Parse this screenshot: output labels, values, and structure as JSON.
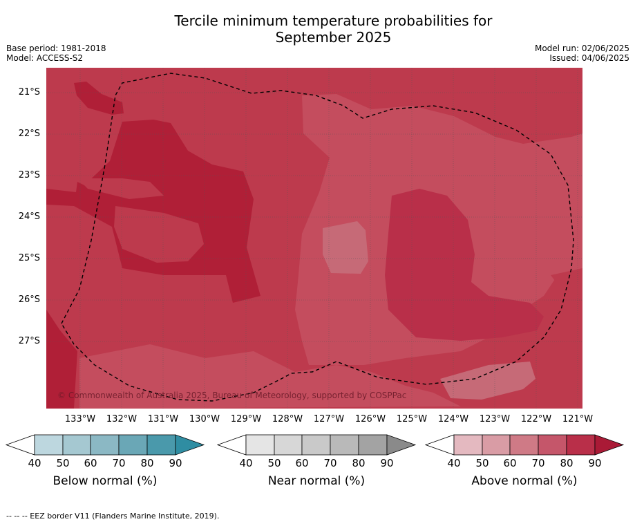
{
  "title_line1": "Tercile minimum temperature probabilities for",
  "title_line2": "September 2025",
  "meta": {
    "base_period": "Base period: 1981-2018",
    "model": "Model: ACCESS-S2",
    "model_run": "Model run: 02/06/2025",
    "issued": "Issued: 04/06/2025"
  },
  "copyright": "© Commonwealth of Australia 2025, Bureau of Meteorology, supported by COSPPac",
  "lat_labels": [
    "21°S",
    "22°S",
    "23°S",
    "24°S",
    "25°S",
    "26°S",
    "27°S"
  ],
  "lon_labels": [
    "133°W",
    "132°W",
    "131°W",
    "130°W",
    "129°W",
    "128°W",
    "127°W",
    "126°W",
    "125°W",
    "124°W",
    "123°W",
    "122°W",
    "121°W"
  ],
  "colors": {
    "above_70_80": "#bd3a4d",
    "above_80_90": "#b01f37",
    "above_60_70": "#c66a77",
    "below": [
      "#bdd7df",
      "#a5c8d1",
      "#8bb8c4",
      "#6aa7b6",
      "#4a99ab",
      "#2f8da2"
    ],
    "near": [
      "#e5e5e5",
      "#d7d7d7",
      "#c9c9c9",
      "#b9b9b9",
      "#a3a3a3",
      "#8a8a8a"
    ],
    "above": [
      "#e4b9c0",
      "#d99ca5",
      "#cf7a86",
      "#c5566a",
      "#b92f49",
      "#aa1a36"
    ]
  },
  "colorbars": [
    {
      "label": "Below normal (%)",
      "ticks": [
        "40",
        "50",
        "60",
        "70",
        "80",
        "90"
      ]
    },
    {
      "label": "Near normal (%)",
      "ticks": [
        "40",
        "50",
        "60",
        "70",
        "80",
        "90"
      ]
    },
    {
      "label": "Above normal (%)",
      "ticks": [
        "40",
        "50",
        "60",
        "70",
        "80",
        "90"
      ]
    }
  ],
  "footnote": "--  --  -- EEZ border V11 (Flanders Marine Institute, 2019)."
}
